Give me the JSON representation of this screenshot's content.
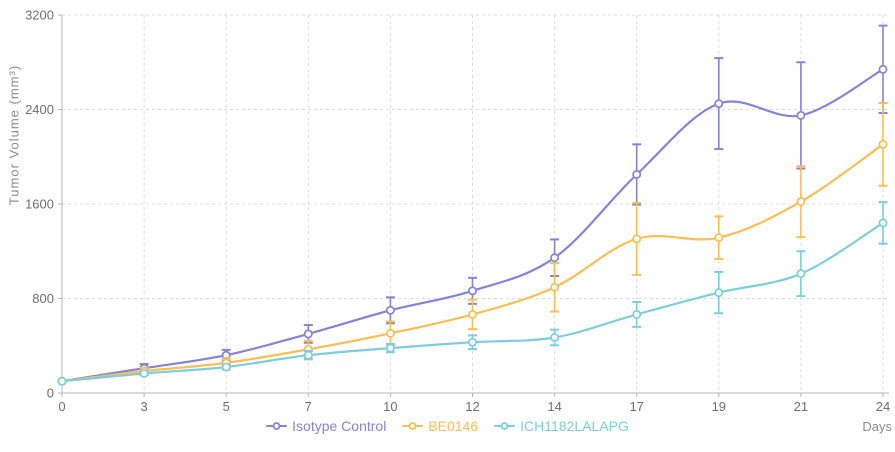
{
  "chart_data": {
    "type": "line",
    "title": "",
    "xlabel": "Days",
    "ylabel": "Tumor Volume (mm³)",
    "x": [
      0,
      3,
      5,
      7,
      10,
      12,
      14,
      17,
      19,
      21,
      24
    ],
    "x_spacing": "categorical-equal",
    "ylim": [
      0,
      3200
    ],
    "yticks": [
      0,
      800,
      1600,
      2400,
      3200
    ],
    "grid": "dashed-both-axes",
    "legend_position": "bottom-center",
    "marker": "open-circle",
    "error_bars": true,
    "series": [
      {
        "name": "Isotype Control",
        "color": "#8583D7",
        "values": [
          100,
          210,
          320,
          500,
          700,
          865,
          1145,
          1850,
          2450,
          2350,
          2740
        ],
        "errors": [
          0,
          35,
          45,
          75,
          110,
          110,
          155,
          255,
          385,
          450,
          370
        ]
      },
      {
        "name": "BE0146",
        "color": "#FBBE53",
        "values": [
          100,
          185,
          255,
          370,
          505,
          665,
          895,
          1305,
          1315,
          1620,
          2105
        ],
        "errors": [
          0,
          28,
          40,
          70,
          100,
          125,
          205,
          305,
          180,
          300,
          350
        ]
      },
      {
        "name": "ICH1182LALAPG",
        "color": "#7CCEDA",
        "values": [
          100,
          165,
          220,
          320,
          380,
          430,
          470,
          665,
          850,
          1010,
          1440
        ],
        "errors": [
          0,
          15,
          22,
          35,
          35,
          58,
          66,
          105,
          175,
          190,
          176
        ]
      }
    ],
    "colors": {
      "axis_line": "#b5b5b5",
      "gridline": "#dcdcdc",
      "tick_text": "#6e6e6e",
      "axis_title_text": "#8c8c8c",
      "background": "#ffffff"
    }
  }
}
